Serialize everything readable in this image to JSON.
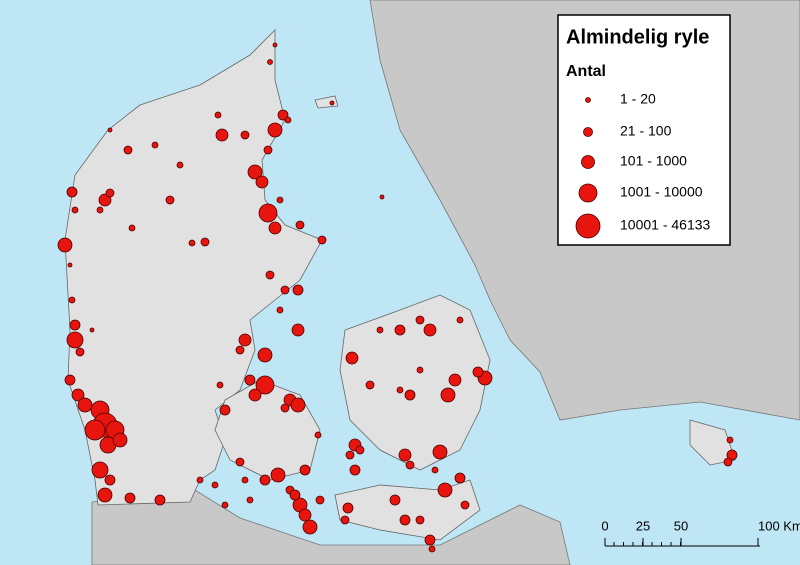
{
  "legend": {
    "title": "Almindelig ryle",
    "subtitle": "Antal",
    "classes": [
      "1 - 20",
      "21 - 100",
      "101 - 1000",
      "1001 - 10000",
      "10001 - 46133"
    ]
  },
  "scale_bar": {
    "labels": [
      "0",
      "25",
      "50",
      "100 Km"
    ]
  }
}
